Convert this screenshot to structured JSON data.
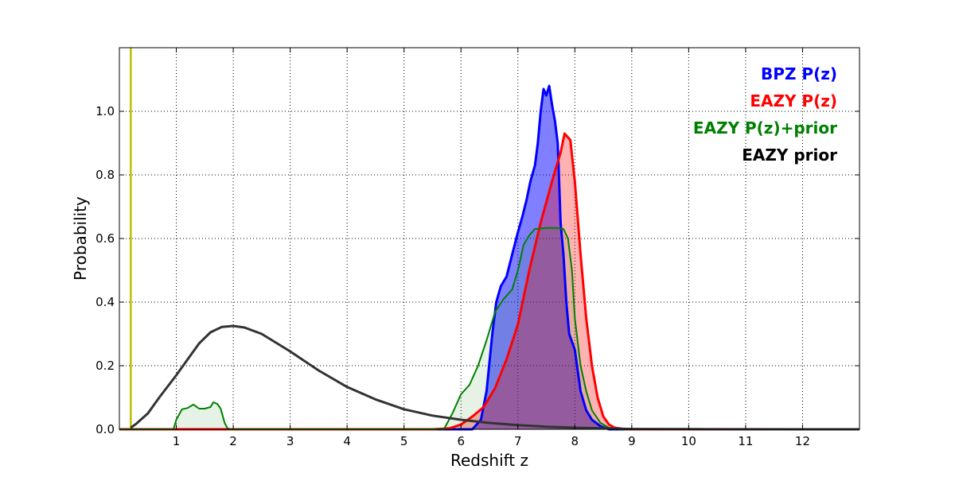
{
  "chart_data": {
    "type": "area",
    "title": "",
    "xlabel": "Redshift z",
    "ylabel": "Probability",
    "xlim": [
      0,
      13
    ],
    "ylim": [
      0,
      1.2
    ],
    "grid": true,
    "x_ticks": [
      1,
      2,
      3,
      4,
      5,
      6,
      7,
      8,
      9,
      10,
      11,
      12
    ],
    "y_ticks": [
      0.0,
      0.2,
      0.4,
      0.6,
      0.8,
      1.0
    ],
    "x_tick_labels": [
      "1",
      "2",
      "3",
      "4",
      "5",
      "6",
      "7",
      "8",
      "9",
      "10",
      "11",
      "12"
    ],
    "y_tick_labels": [
      "0.0",
      "0.2",
      "0.4",
      "0.6",
      "0.8",
      "1.0"
    ],
    "legend_position": "top-right",
    "vertical_line": {
      "x": 0.2,
      "color": "#bfbf00"
    },
    "series": [
      {
        "name": "BPZ P(z)",
        "color": "#0000ff",
        "fill": "#0000ff",
        "fill_opacity": 0.5,
        "points": [
          [
            0,
            0
          ],
          [
            6.2,
            0
          ],
          [
            6.35,
            0.03
          ],
          [
            6.45,
            0.12
          ],
          [
            6.55,
            0.3
          ],
          [
            6.62,
            0.4
          ],
          [
            6.7,
            0.45
          ],
          [
            6.8,
            0.48
          ],
          [
            6.9,
            0.55
          ],
          [
            7.0,
            0.62
          ],
          [
            7.08,
            0.67
          ],
          [
            7.15,
            0.72
          ],
          [
            7.22,
            0.78
          ],
          [
            7.3,
            0.83
          ],
          [
            7.35,
            0.9
          ],
          [
            7.4,
            1.0
          ],
          [
            7.45,
            1.07
          ],
          [
            7.5,
            1.05
          ],
          [
            7.55,
            1.08
          ],
          [
            7.6,
            1.02
          ],
          [
            7.65,
            0.97
          ],
          [
            7.7,
            0.9
          ],
          [
            7.72,
            0.8
          ],
          [
            7.75,
            0.65
          ],
          [
            7.8,
            0.55
          ],
          [
            7.85,
            0.4
          ],
          [
            7.9,
            0.3
          ],
          [
            8.0,
            0.25
          ],
          [
            8.1,
            0.12
          ],
          [
            8.2,
            0.06
          ],
          [
            8.3,
            0.03
          ],
          [
            8.45,
            0.01
          ],
          [
            8.6,
            0
          ],
          [
            12,
            0
          ],
          [
            13,
            0
          ]
        ]
      },
      {
        "name": "EAZY P(z)",
        "color": "#ff0000",
        "fill": "#ff0000",
        "fill_opacity": 0.3,
        "points": [
          [
            0,
            0
          ],
          [
            5.5,
            0
          ],
          [
            5.8,
            0.003
          ],
          [
            6.0,
            0.015
          ],
          [
            6.2,
            0.04
          ],
          [
            6.4,
            0.07
          ],
          [
            6.6,
            0.13
          ],
          [
            6.8,
            0.22
          ],
          [
            7.0,
            0.33
          ],
          [
            7.2,
            0.5
          ],
          [
            7.4,
            0.65
          ],
          [
            7.6,
            0.78
          ],
          [
            7.75,
            0.87
          ],
          [
            7.82,
            0.93
          ],
          [
            7.92,
            0.91
          ],
          [
            8.0,
            0.78
          ],
          [
            8.1,
            0.55
          ],
          [
            8.2,
            0.35
          ],
          [
            8.3,
            0.2
          ],
          [
            8.4,
            0.1
          ],
          [
            8.5,
            0.04
          ],
          [
            8.6,
            0.015
          ],
          [
            8.7,
            0.005
          ],
          [
            8.9,
            0
          ],
          [
            13,
            0
          ]
        ]
      },
      {
        "name": "EAZY P(z)+prior",
        "color": "#008000",
        "fill": "#008000",
        "fill_opacity": 0.1,
        "points": [
          [
            0,
            0
          ],
          [
            0.95,
            0
          ],
          [
            1.0,
            0.03
          ],
          [
            1.1,
            0.063
          ],
          [
            1.2,
            0.067
          ],
          [
            1.3,
            0.078
          ],
          [
            1.4,
            0.065
          ],
          [
            1.5,
            0.065
          ],
          [
            1.6,
            0.07
          ],
          [
            1.65,
            0.085
          ],
          [
            1.72,
            0.08
          ],
          [
            1.78,
            0.065
          ],
          [
            1.85,
            0.02
          ],
          [
            1.9,
            0.003
          ],
          [
            2.0,
            0
          ],
          [
            5.7,
            0
          ],
          [
            5.85,
            0.05
          ],
          [
            6.0,
            0.11
          ],
          [
            6.15,
            0.14
          ],
          [
            6.3,
            0.2
          ],
          [
            6.45,
            0.28
          ],
          [
            6.6,
            0.37
          ],
          [
            6.75,
            0.41
          ],
          [
            6.9,
            0.44
          ],
          [
            7.0,
            0.5
          ],
          [
            7.1,
            0.58
          ],
          [
            7.2,
            0.61
          ],
          [
            7.3,
            0.63
          ],
          [
            7.5,
            0.633
          ],
          [
            7.7,
            0.633
          ],
          [
            7.8,
            0.63
          ],
          [
            7.88,
            0.6
          ],
          [
            7.95,
            0.5
          ],
          [
            8.0,
            0.35
          ],
          [
            8.1,
            0.2
          ],
          [
            8.2,
            0.12
          ],
          [
            8.3,
            0.06
          ],
          [
            8.45,
            0.02
          ],
          [
            8.6,
            0.005
          ],
          [
            8.8,
            0
          ],
          [
            13,
            0
          ]
        ]
      },
      {
        "name": "EAZY prior",
        "color": "#333333",
        "fill": null,
        "fill_opacity": 0,
        "points": [
          [
            0.2,
            0.005
          ],
          [
            0.3,
            0.018
          ],
          [
            0.5,
            0.05
          ],
          [
            0.7,
            0.1
          ],
          [
            1.0,
            0.17
          ],
          [
            1.2,
            0.22
          ],
          [
            1.4,
            0.27
          ],
          [
            1.6,
            0.305
          ],
          [
            1.8,
            0.322
          ],
          [
            2.0,
            0.325
          ],
          [
            2.2,
            0.32
          ],
          [
            2.5,
            0.3
          ],
          [
            3.0,
            0.245
          ],
          [
            3.5,
            0.185
          ],
          [
            4.0,
            0.133
          ],
          [
            4.5,
            0.094
          ],
          [
            5.0,
            0.063
          ],
          [
            5.5,
            0.043
          ],
          [
            6.0,
            0.03
          ],
          [
            6.5,
            0.02
          ],
          [
            7.0,
            0.013
          ],
          [
            7.5,
            0.008
          ],
          [
            8.0,
            0.005
          ],
          [
            8.5,
            0.003
          ],
          [
            9.0,
            0.001
          ],
          [
            10,
            0.0004
          ],
          [
            13,
            0
          ]
        ]
      }
    ]
  }
}
